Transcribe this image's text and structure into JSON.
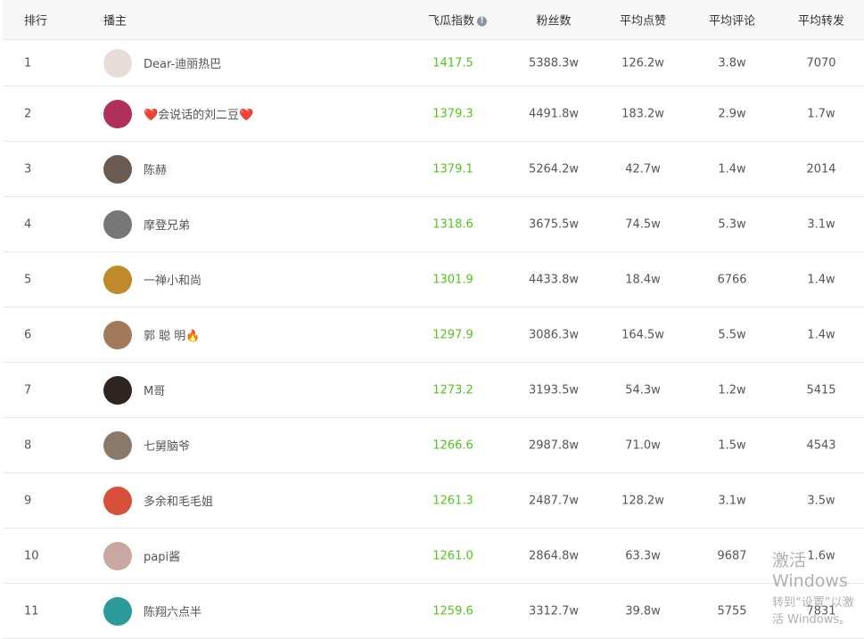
{
  "headers": {
    "rank": "排行",
    "anchor": "播主",
    "index": "飞瓜指数",
    "fans": "粉丝数",
    "likes": "平均点赞",
    "comments": "平均评论",
    "shares": "平均转发"
  },
  "rows": [
    {
      "rank": "1",
      "name": "Dear-迪丽热巴",
      "index": "1417.5",
      "fans": "5388.3w",
      "likes": "126.2w",
      "comments": "3.8w",
      "shares": "7070",
      "avatar_color": "#e8dcd8"
    },
    {
      "rank": "2",
      "name": "❤️会说话的刘二豆❤️",
      "index": "1379.3",
      "fans": "4491.8w",
      "likes": "183.2w",
      "comments": "2.9w",
      "shares": "1.7w",
      "avatar_color": "#b0305a"
    },
    {
      "rank": "3",
      "name": "陈赫",
      "index": "1379.1",
      "fans": "5264.2w",
      "likes": "42.7w",
      "comments": "1.4w",
      "shares": "2014",
      "avatar_color": "#6b5a50"
    },
    {
      "rank": "4",
      "name": "摩登兄弟",
      "index": "1318.6",
      "fans": "3675.5w",
      "likes": "74.5w",
      "comments": "5.3w",
      "shares": "3.1w",
      "avatar_color": "#777777"
    },
    {
      "rank": "5",
      "name": "一禅小和尚",
      "index": "1301.9",
      "fans": "4433.8w",
      "likes": "18.4w",
      "comments": "6766",
      "shares": "1.4w",
      "avatar_color": "#c08a2a"
    },
    {
      "rank": "6",
      "name": "郭 聪 明🔥",
      "index": "1297.9",
      "fans": "3086.3w",
      "likes": "164.5w",
      "comments": "5.5w",
      "shares": "1.4w",
      "avatar_color": "#a07a5a"
    },
    {
      "rank": "7",
      "name": "M哥",
      "index": "1273.2",
      "fans": "3193.5w",
      "likes": "54.3w",
      "comments": "1.2w",
      "shares": "5415",
      "avatar_color": "#2e2420"
    },
    {
      "rank": "8",
      "name": "七舅脑爷",
      "index": "1266.6",
      "fans": "2987.8w",
      "likes": "71.0w",
      "comments": "1.5w",
      "shares": "4543",
      "avatar_color": "#8a7868"
    },
    {
      "rank": "9",
      "name": "多余和毛毛姐",
      "index": "1261.3",
      "fans": "2487.7w",
      "likes": "128.2w",
      "comments": "3.1w",
      "shares": "3.5w",
      "avatar_color": "#d8503a"
    },
    {
      "rank": "10",
      "name": "papi酱",
      "index": "1261.0",
      "fans": "2864.8w",
      "likes": "63.3w",
      "comments": "9687",
      "shares": "1.6w",
      "avatar_color": "#c8a8a0"
    },
    {
      "rank": "11",
      "name": "陈翔六点半",
      "index": "1259.6",
      "fans": "3312.7w",
      "likes": "39.8w",
      "comments": "5755",
      "shares": "7831",
      "avatar_color": "#2a9a9a"
    }
  ],
  "watermark": {
    "line1": "激活 Windows",
    "line2": "转到“设置”以激活 Windows。"
  },
  "colors": {
    "index": "#52c41a",
    "header_bg": "#f7f7f7"
  }
}
